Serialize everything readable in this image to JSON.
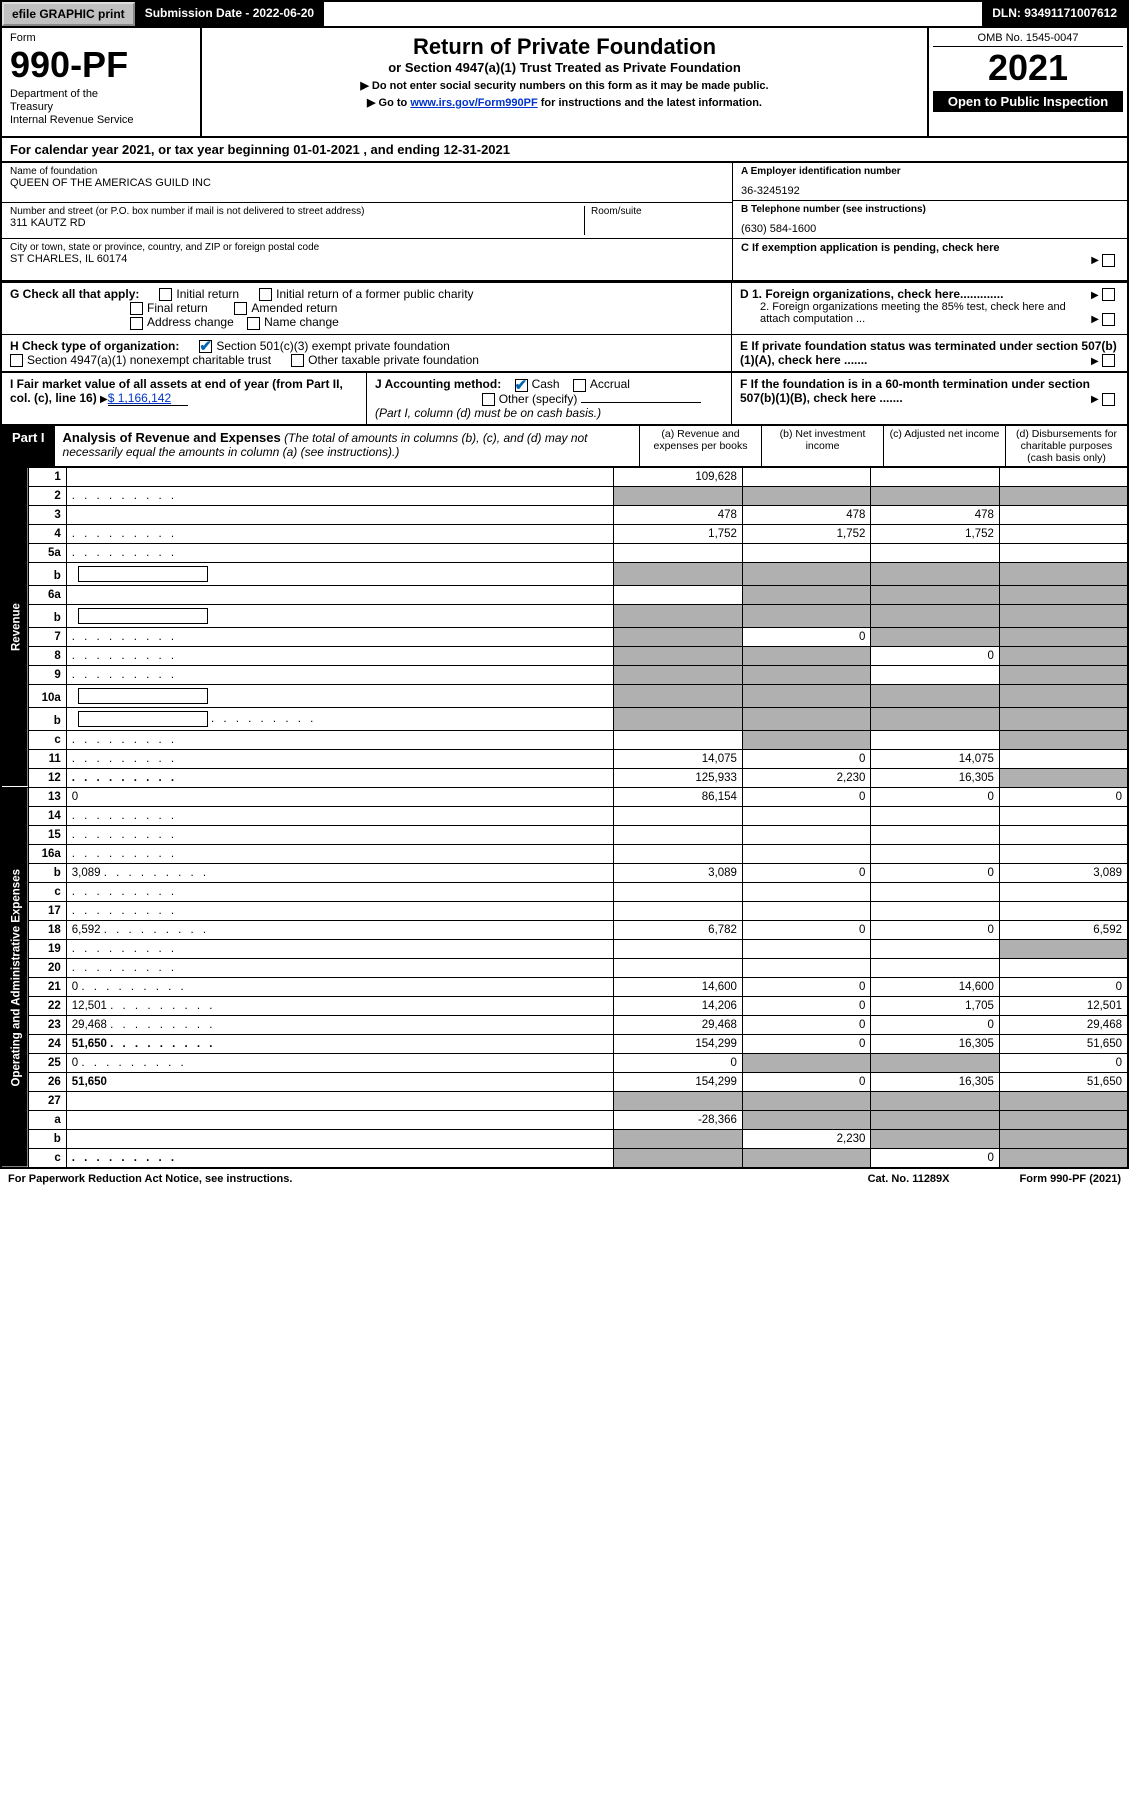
{
  "top": {
    "efile": "efile GRAPHIC print",
    "sub_date": "Submission Date - 2022-06-20",
    "dln": "DLN: 93491171007612"
  },
  "header": {
    "form_label": "Form",
    "form_no": "990-PF",
    "dept": "Department of the Treasury\nInternal Revenue Service",
    "title": "Return of Private Foundation",
    "subtitle": "or Section 4947(a)(1) Trust Treated as Private Foundation",
    "directive1": "▶ Do not enter social security numbers on this form as it may be made public.",
    "directive2_pre": "▶ Go to ",
    "directive2_link": "www.irs.gov/Form990PF",
    "directive2_post": " for instructions and the latest information.",
    "omb": "OMB No. 1545-0047",
    "year": "2021",
    "open": "Open to Public Inspection"
  },
  "calendar": "For calendar year 2021, or tax year beginning 01-01-2021                         , and ending 12-31-2021",
  "name": {
    "lbl": "Name of foundation",
    "val": "QUEEN OF THE AMERICAS GUILD INC"
  },
  "ein": {
    "lbl": "A Employer identification number",
    "val": "36-3245192"
  },
  "address": {
    "lbl": "Number and street (or P.O. box number if mail is not delivered to street address)",
    "val": "311 KAUTZ RD",
    "room_lbl": "Room/suite"
  },
  "phone": {
    "lbl": "B Telephone number (see instructions)",
    "val": "(630) 584-1600"
  },
  "city": {
    "lbl": "City or town, state or province, country, and ZIP or foreign postal code",
    "val": "ST CHARLES, IL  60174"
  },
  "c_box": "C If exemption application is pending, check here",
  "g": {
    "lbl": "G Check all that apply:",
    "opts": [
      "Initial return",
      "Final return",
      "Address change",
      "Initial return of a former public charity",
      "Amended return",
      "Name change"
    ]
  },
  "d": {
    "d1": "D 1. Foreign organizations, check here.............",
    "d2": "2. Foreign organizations meeting the 85% test, check here and attach computation ..."
  },
  "e_box": "E   If private foundation status was terminated under section 507(b)(1)(A), check here .......",
  "h": {
    "lbl": "H Check type of organization:",
    "opt1": "Section 501(c)(3) exempt private foundation",
    "opt2": "Section 4947(a)(1) nonexempt charitable trust",
    "opt3": "Other taxable private foundation"
  },
  "i": {
    "lbl": "I Fair market value of all assets at end of year (from Part II, col. (c), line 16)",
    "val": "$  1,166,142"
  },
  "j": {
    "lbl": "J Accounting method:",
    "opt1": "Cash",
    "opt2": "Accrual",
    "opt3": "Other (specify)",
    "note": "(Part I, column (d) must be on cash basis.)"
  },
  "f_box": "F   If the foundation is in a 60-month termination under section 507(b)(1)(B), check here .......",
  "part1": {
    "tag": "Part I",
    "title": "Analysis of Revenue and Expenses",
    "note": "(The total of amounts in columns (b), (c), and (d) may not necessarily equal the amounts in column (a) (see instructions).)",
    "col_a": "(a)   Revenue and expenses per books",
    "col_b": "(b)   Net investment income",
    "col_c": "(c)   Adjusted net income",
    "col_d": "(d)   Disbursements for charitable purposes (cash basis only)"
  },
  "sides": {
    "rev": "Revenue",
    "exp": "Operating and Administrative Expenses"
  },
  "rows": [
    {
      "n": "1",
      "d": "",
      "a": "109,628",
      "b": "",
      "c": ""
    },
    {
      "n": "2",
      "d": "",
      "dots": true,
      "a": "",
      "b": "",
      "c": "",
      "shade": [
        "a",
        "b",
        "c",
        "d"
      ]
    },
    {
      "n": "3",
      "d": "",
      "a": "478",
      "b": "478",
      "c": "478"
    },
    {
      "n": "4",
      "d": "",
      "dots": true,
      "a": "1,752",
      "b": "1,752",
      "c": "1,752"
    },
    {
      "n": "5a",
      "d": "",
      "dots": true,
      "a": "",
      "b": "",
      "c": ""
    },
    {
      "n": "b",
      "d": "",
      "inner": true,
      "a": "",
      "b": "",
      "c": "",
      "shade": [
        "a",
        "b",
        "c",
        "d"
      ]
    },
    {
      "n": "6a",
      "d": "",
      "a": "",
      "b": "",
      "c": "",
      "shade": [
        "b",
        "c",
        "d"
      ]
    },
    {
      "n": "b",
      "d": "",
      "inner": true,
      "a": "",
      "b": "",
      "c": "",
      "shade": [
        "a",
        "b",
        "c",
        "d"
      ]
    },
    {
      "n": "7",
      "d": "",
      "dots": true,
      "a": "",
      "b": "0",
      "c": "",
      "shade": [
        "a",
        "c",
        "d"
      ]
    },
    {
      "n": "8",
      "d": "",
      "dots": true,
      "a": "",
      "b": "",
      "c": "0",
      "shade": [
        "a",
        "b",
        "d"
      ]
    },
    {
      "n": "9",
      "d": "",
      "dots": true,
      "a": "",
      "b": "",
      "c": "",
      "shade": [
        "a",
        "b",
        "d"
      ]
    },
    {
      "n": "10a",
      "d": "",
      "inner": true,
      "a": "",
      "b": "",
      "c": "",
      "shade": [
        "a",
        "b",
        "c",
        "d"
      ]
    },
    {
      "n": "b",
      "d": "",
      "dots": true,
      "inner": true,
      "a": "",
      "b": "",
      "c": "",
      "shade": [
        "a",
        "b",
        "c",
        "d"
      ]
    },
    {
      "n": "c",
      "d": "",
      "dots": true,
      "a": "",
      "b": "",
      "c": "",
      "shade": [
        "b",
        "d"
      ]
    },
    {
      "n": "11",
      "d": "",
      "dots": true,
      "a": "14,075",
      "b": "0",
      "c": "14,075"
    },
    {
      "n": "12",
      "d": "",
      "bold": true,
      "dots": true,
      "a": "125,933",
      "b": "2,230",
      "c": "16,305",
      "shade": [
        "d"
      ]
    },
    {
      "n": "13",
      "d": "0",
      "a": "86,154",
      "b": "0",
      "c": "0"
    },
    {
      "n": "14",
      "d": "",
      "dots": true,
      "a": "",
      "b": "",
      "c": ""
    },
    {
      "n": "15",
      "d": "",
      "dots": true,
      "a": "",
      "b": "",
      "c": ""
    },
    {
      "n": "16a",
      "d": "",
      "dots": true,
      "a": "",
      "b": "",
      "c": ""
    },
    {
      "n": "b",
      "d": "3,089",
      "dots": true,
      "a": "3,089",
      "b": "0",
      "c": "0"
    },
    {
      "n": "c",
      "d": "",
      "dots": true,
      "a": "",
      "b": "",
      "c": ""
    },
    {
      "n": "17",
      "d": "",
      "dots": true,
      "a": "",
      "b": "",
      "c": ""
    },
    {
      "n": "18",
      "d": "6,592",
      "dots": true,
      "a": "6,782",
      "b": "0",
      "c": "0"
    },
    {
      "n": "19",
      "d": "",
      "dots": true,
      "a": "",
      "b": "",
      "c": "",
      "shade": [
        "d"
      ]
    },
    {
      "n": "20",
      "d": "",
      "dots": true,
      "a": "",
      "b": "",
      "c": ""
    },
    {
      "n": "21",
      "d": "0",
      "dots": true,
      "a": "14,600",
      "b": "0",
      "c": "14,600"
    },
    {
      "n": "22",
      "d": "12,501",
      "dots": true,
      "a": "14,206",
      "b": "0",
      "c": "1,705"
    },
    {
      "n": "23",
      "d": "29,468",
      "dots": true,
      "a": "29,468",
      "b": "0",
      "c": "0"
    },
    {
      "n": "24",
      "d": "51,650",
      "bold": true,
      "dots": true,
      "a": "154,299",
      "b": "0",
      "c": "16,305"
    },
    {
      "n": "25",
      "d": "0",
      "dots": true,
      "a": "0",
      "b": "",
      "c": "",
      "shade": [
        "b",
        "c"
      ]
    },
    {
      "n": "26",
      "d": "51,650",
      "bold": true,
      "a": "154,299",
      "b": "0",
      "c": "16,305"
    },
    {
      "n": "27",
      "d": "",
      "a": "",
      "b": "",
      "c": "",
      "shade": [
        "a",
        "b",
        "c",
        "d"
      ]
    },
    {
      "n": "a",
      "d": "",
      "bold": true,
      "a": "-28,366",
      "b": "",
      "c": "",
      "shade": [
        "b",
        "c",
        "d"
      ]
    },
    {
      "n": "b",
      "d": "",
      "bold": true,
      "a": "",
      "b": "2,230",
      "c": "",
      "shade": [
        "a",
        "c",
        "d"
      ]
    },
    {
      "n": "c",
      "d": "",
      "bold": true,
      "dots": true,
      "a": "",
      "b": "",
      "c": "0",
      "shade": [
        "a",
        "b",
        "d"
      ]
    }
  ],
  "footer": {
    "left": "For Paperwork Reduction Act Notice, see instructions.",
    "mid": "Cat. No. 11289X",
    "right": "Form 990-PF (2021)"
  },
  "style": {
    "bg": "#ffffff",
    "ink": "#000000",
    "shade": "#b0b0b0",
    "link": "#0033cc",
    "check": "#0066b3"
  }
}
